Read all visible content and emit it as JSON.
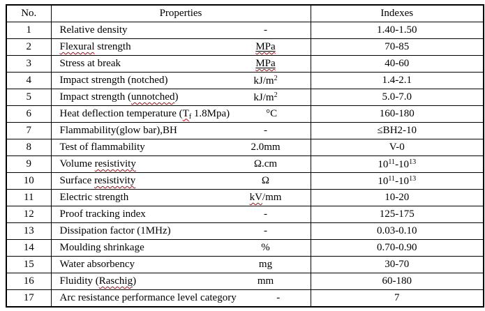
{
  "table": {
    "columns": [
      "No.",
      "Properties",
      "Indexes"
    ],
    "rows": [
      {
        "no": "1",
        "property": [
          {
            "t": "Relative density"
          }
        ],
        "unit": [
          {
            "t": "-"
          }
        ],
        "index": [
          {
            "t": "1.40-1.50"
          }
        ]
      },
      {
        "no": "2",
        "property": [
          {
            "t": "Flexural",
            "sq": true
          },
          {
            "t": " strength"
          }
        ],
        "unit": [
          {
            "t": "MPa",
            "u": true,
            "sq": true
          }
        ],
        "index": [
          {
            "t": "70-85"
          }
        ]
      },
      {
        "no": "3",
        "property": [
          {
            "t": "Stress at break"
          }
        ],
        "unit": [
          {
            "t": "MPa",
            "u": true,
            "sq": true
          }
        ],
        "index": [
          {
            "t": "40-60"
          }
        ]
      },
      {
        "no": "4",
        "property": [
          {
            "t": "Impact strength (notched)"
          }
        ],
        "unit": [
          {
            "t": "kJ/m"
          },
          {
            "t": "2",
            "sup": true
          }
        ],
        "index": [
          {
            "t": "1.4-2.1"
          }
        ]
      },
      {
        "no": "5",
        "property": [
          {
            "t": "Impact strength ("
          },
          {
            "t": "unnotched",
            "sq": true
          },
          {
            "t": ")"
          }
        ],
        "unit": [
          {
            "t": "kJ/m"
          },
          {
            "t": "2",
            "sup": true
          }
        ],
        "index": [
          {
            "t": "5.0-7.0"
          }
        ]
      },
      {
        "no": "6",
        "property": [
          {
            "t": "Heat deflection temperature ("
          },
          {
            "t": "T",
            "sq": true
          },
          {
            "t": "f",
            "sub": true,
            "sq": true
          },
          {
            "t": " 1.8Mpa)"
          }
        ],
        "unit": [
          {
            "t": "°C"
          }
        ],
        "index": [
          {
            "t": "160-180"
          }
        ]
      },
      {
        "no": "7",
        "property": [
          {
            "t": "Flammability(glow bar),BH"
          }
        ],
        "unit": [
          {
            "t": "-"
          }
        ],
        "index": [
          {
            "t": "≤BH2-10"
          }
        ]
      },
      {
        "no": "8",
        "property": [
          {
            "t": "Test of flammability"
          }
        ],
        "unit": [
          {
            "t": "2.0mm"
          }
        ],
        "index": [
          {
            "t": "V-0"
          }
        ]
      },
      {
        "no": "9",
        "property": [
          {
            "t": "Volume "
          },
          {
            "t": "resistivity",
            "sq": true
          }
        ],
        "unit": [
          {
            "t": "Ω.cm"
          }
        ],
        "index": [
          {
            "t": "10"
          },
          {
            "t": "11",
            "sup": true
          },
          {
            "t": "-10"
          },
          {
            "t": "13",
            "sup": true
          }
        ]
      },
      {
        "no": "10",
        "property": [
          {
            "t": "Surface "
          },
          {
            "t": "resistivity",
            "sq": true
          }
        ],
        "unit": [
          {
            "t": "Ω"
          }
        ],
        "index": [
          {
            "t": "10"
          },
          {
            "t": "11",
            "sup": true
          },
          {
            "t": "-10"
          },
          {
            "t": "13",
            "sup": true
          }
        ]
      },
      {
        "no": "11",
        "property": [
          {
            "t": "Electric strength"
          }
        ],
        "unit": [
          {
            "t": "kV",
            "sq": true
          },
          {
            "t": "/mm"
          }
        ],
        "index": [
          {
            "t": "10-20"
          }
        ]
      },
      {
        "no": "12",
        "property": [
          {
            "t": "Proof tracking index"
          }
        ],
        "unit": [
          {
            "t": "-"
          }
        ],
        "index": [
          {
            "t": "125-175"
          }
        ]
      },
      {
        "no": "13",
        "property": [
          {
            "t": "Dissipation factor (1MHz)"
          }
        ],
        "unit": [
          {
            "t": "-"
          }
        ],
        "index": [
          {
            "t": "0.03-0.10"
          }
        ]
      },
      {
        "no": "14",
        "property": [
          {
            "t": "Moulding shrinkage"
          }
        ],
        "unit": [
          {
            "t": "%"
          }
        ],
        "index": [
          {
            "t": "0.70-0.90"
          }
        ]
      },
      {
        "no": "15",
        "property": [
          {
            "t": "Water absorbency"
          }
        ],
        "unit": [
          {
            "t": "mg"
          }
        ],
        "index": [
          {
            "t": "30-70"
          }
        ]
      },
      {
        "no": "16",
        "property": [
          {
            "t": "Fluidity ("
          },
          {
            "t": "Raschig",
            "sq": true
          },
          {
            "t": ")"
          }
        ],
        "unit": [
          {
            "t": "mm"
          }
        ],
        "index": [
          {
            "t": "60-180"
          }
        ]
      },
      {
        "no": "17",
        "property": [
          {
            "t": "Arc resistance performance level category"
          }
        ],
        "unit": [
          {
            "t": "-"
          }
        ],
        "index": [
          {
            "t": "7"
          }
        ]
      }
    ]
  },
  "colors": {
    "border": "#000000",
    "text": "#000000",
    "spellcheck_squiggle": "#cc0000",
    "background": "#ffffff"
  }
}
